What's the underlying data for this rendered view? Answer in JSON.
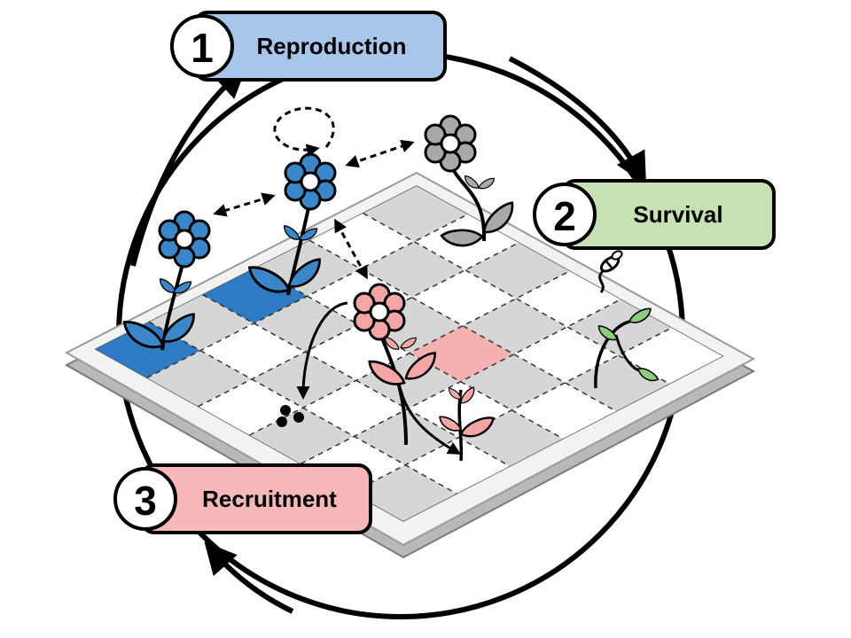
{
  "stages": [
    {
      "number": "1",
      "label": "Reproduction",
      "fill": "#a8c6ea"
    },
    {
      "number": "2",
      "label": "Survival",
      "fill": "#c6e2b4"
    },
    {
      "number": "3",
      "label": "Recruitment",
      "fill": "#f6b8b8"
    }
  ],
  "colors": {
    "blue_plant": "#3a86c8",
    "gray_plant": "#a9a9a9",
    "pink_plant": "#f4a6a6",
    "green_seedling": "#8dcc7a",
    "cell_gray": "#d6d6d6",
    "cell_blue": "#2e7bc4",
    "cell_pink": "#f5b1b1",
    "outline": "#000000"
  },
  "icons": {
    "cycle": "cycle-arrows-icon",
    "grid": "isometric-grid-icon",
    "bee": "bee-icon",
    "seeds": "seeds-icon",
    "self_pollination": "self-loop-arrow-icon"
  }
}
